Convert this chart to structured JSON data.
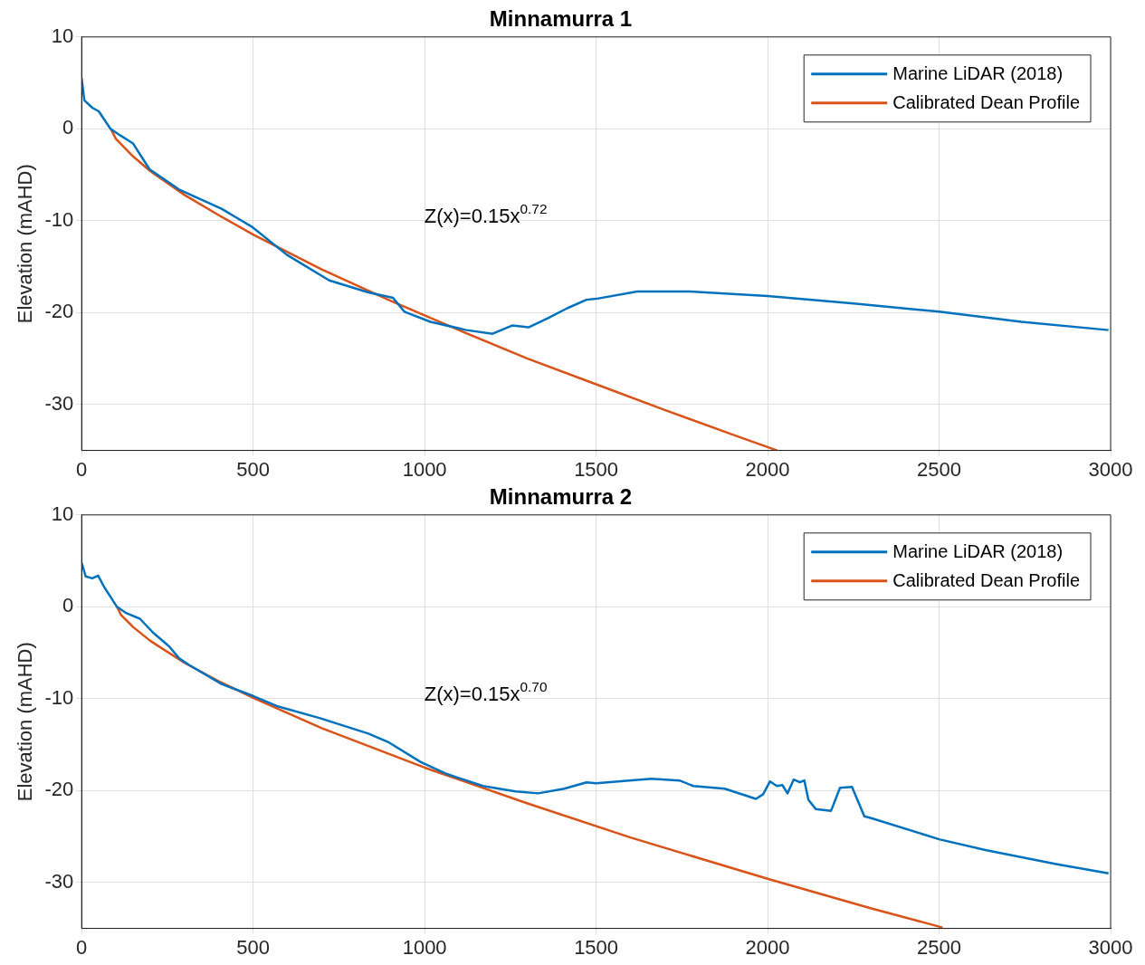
{
  "chart_data": [
    {
      "type": "line",
      "title": "Minnamurra 1",
      "ylabel": "Elevation (mAHD)",
      "xlim": [
        0,
        3000
      ],
      "xticks": [
        0,
        500,
        1000,
        1500,
        2000,
        2500,
        3000
      ],
      "ylim": [
        -35,
        10
      ],
      "yticks": [
        -30,
        -20,
        -10,
        0,
        10
      ],
      "grid": true,
      "legend": "top right",
      "annotations": [
        "Z(x)=0.15x$^{0.72}$"
      ],
      "series": [
        {
          "name": "Marine LiDAR (2018)",
          "color": "#0072bd",
          "x": [
            0,
            8,
            31,
            50,
            84,
            112,
            150,
            198,
            284,
            408,
            498,
            598,
            722,
            836,
            908,
            941,
            1017,
            1122,
            1198,
            1255,
            1303,
            1360,
            1417,
            1472,
            1500,
            1620,
            1773,
            2000,
            2251,
            2500,
            2740,
            2994
          ],
          "values": [
            5.5,
            3.1,
            2.3,
            1.9,
            0,
            -0.7,
            -1.6,
            -4.4,
            -6.6,
            -8.7,
            -10.7,
            -13.7,
            -16.5,
            -17.8,
            -18.4,
            -19.9,
            -21.0,
            -21.9,
            -22.3,
            -21.4,
            -21.6,
            -20.6,
            -19.5,
            -18.6,
            -18.5,
            -17.7,
            -17.7,
            -18.2,
            -19.0,
            -19.9,
            -21.0,
            -21.9
          ]
        },
        {
          "name": "Calibrated Dean Profile",
          "color": "#d95319",
          "x": [
            85,
            100,
            150,
            200,
            300,
            400,
            500,
            700,
            900,
            1100,
            1300,
            1500,
            1700,
            1900,
            2028
          ],
          "values": [
            0,
            -1.1,
            -3.0,
            -4.6,
            -7.2,
            -9.4,
            -11.5,
            -15.3,
            -18.7,
            -21.9,
            -25.0,
            -27.8,
            -30.6,
            -33.3,
            -35
          ]
        }
      ]
    },
    {
      "type": "line",
      "title": "Minnamurra 2",
      "ylabel": "Elevation (mAHD)",
      "xlim": [
        0,
        3000
      ],
      "xticks": [
        0,
        500,
        1000,
        1500,
        2000,
        2500,
        3000
      ],
      "ylim": [
        -35,
        10
      ],
      "yticks": [
        -30,
        -20,
        -10,
        0,
        10
      ],
      "grid": true,
      "legend": "top right",
      "annotations": [
        "Z(x)=0.15x$^{0.70}$"
      ],
      "series": [
        {
          "name": "Marine LiDAR (2018)",
          "color": "#0072bd",
          "x": [
            0,
            12,
            31,
            48,
            65,
            103,
            131,
            170,
            208,
            255,
            284,
            312,
            408,
            500,
            569,
            693,
            836,
            893,
            989,
            1065,
            1170,
            1265,
            1331,
            1407,
            1472,
            1500,
            1661,
            1743,
            1783,
            1875,
            1966,
            1987,
            2007,
            2027,
            2043,
            2058,
            2076,
            2094,
            2107,
            2119,
            2140,
            2185,
            2211,
            2246,
            2282,
            2302,
            2500,
            2638,
            2841,
            2994
          ],
          "values": [
            4.8,
            3.3,
            3.1,
            3.4,
            2.2,
            0,
            -0.7,
            -1.3,
            -2.8,
            -4.3,
            -5.6,
            -6.3,
            -8.4,
            -9.7,
            -10.8,
            -12.1,
            -13.8,
            -14.7,
            -16.9,
            -18.2,
            -19.5,
            -20.1,
            -20.3,
            -19.8,
            -19.1,
            -19.2,
            -18.7,
            -18.9,
            -19.5,
            -19.8,
            -20.9,
            -20.4,
            -19.0,
            -19.5,
            -19.4,
            -20.3,
            -18.8,
            -19.1,
            -18.9,
            -21.0,
            -22.0,
            -22.2,
            -19.7,
            -19.6,
            -22.8,
            -23.0,
            -25.3,
            -26.5,
            -28.0,
            -29.0
          ]
        },
        {
          "name": "Calibrated Dean Profile",
          "color": "#d95319",
          "x": [
            103,
            115,
            150,
            200,
            300,
            400,
            500,
            700,
            1000,
            1300,
            1600,
            2000,
            2300,
            2510
          ],
          "values": [
            0,
            -0.9,
            -2.2,
            -3.7,
            -6.1,
            -8.1,
            -9.9,
            -13.2,
            -17.5,
            -21.4,
            -25.1,
            -29.6,
            -32.8,
            -34.9
          ]
        }
      ]
    }
  ]
}
